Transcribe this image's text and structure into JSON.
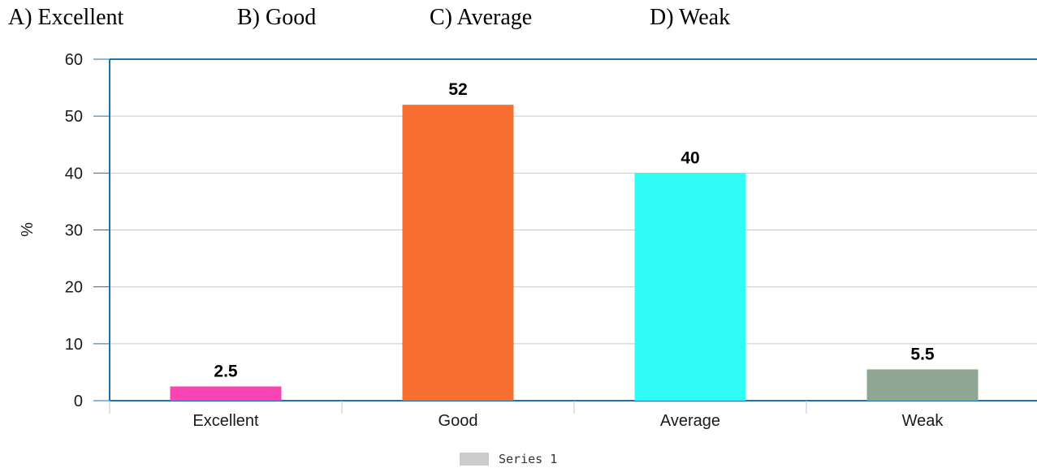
{
  "options": [
    {
      "label": "A) Excellent"
    },
    {
      "label": "B) Good"
    },
    {
      "label": "C) Average"
    },
    {
      "label": "D) Weak"
    }
  ],
  "legend": {
    "label": "Series 1",
    "color": "#cccccc"
  },
  "chart_data": {
    "type": "bar",
    "categories": [
      "Excellent",
      "Good",
      "Average",
      "Weak"
    ],
    "series": [
      {
        "name": "Series 1",
        "values": [
          2.5,
          52,
          40,
          5.5
        ]
      }
    ],
    "data_labels": [
      "2.5",
      "52",
      "40",
      "5.5"
    ],
    "colors": [
      "#f945b4",
      "#f77031",
      "#2ffcf6",
      "#8fa693"
    ],
    "ylabel": "%",
    "ylim": [
      0,
      60
    ],
    "yticks": [
      0,
      10,
      20,
      30,
      40,
      50,
      60
    ],
    "grid": true,
    "axis_color": "#1f6fb2",
    "legend_position": "bottom"
  }
}
